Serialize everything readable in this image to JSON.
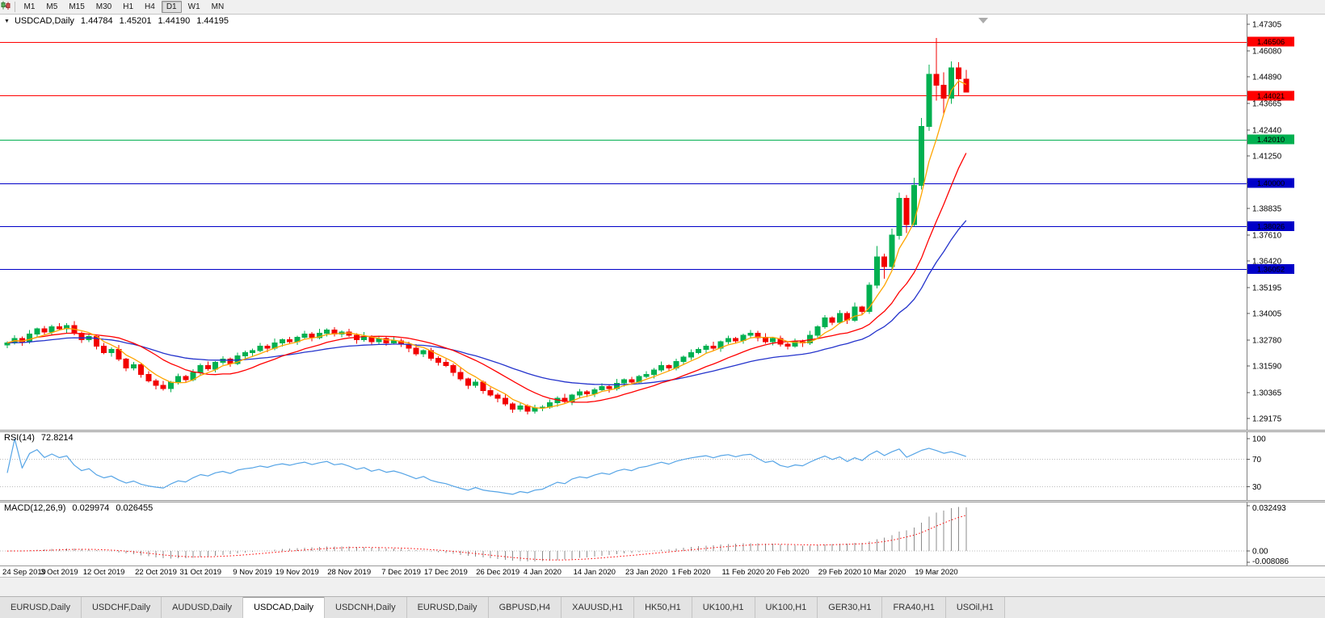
{
  "toolbar": {
    "chart_menu_icon": "candlestick-chart-icon",
    "timeframes": [
      "M1",
      "M5",
      "M15",
      "M30",
      "H1",
      "H4",
      "D1",
      "W1",
      "MN"
    ],
    "active_timeframe": "D1"
  },
  "chart": {
    "title": {
      "symbol": "USDCAD,Daily",
      "open": "1.44784",
      "high": "1.45201",
      "low": "1.44190",
      "close": "1.44195"
    },
    "price_axis": {
      "ticks": [
        "1.47305",
        "1.46080",
        "1.44890",
        "1.43665",
        "1.42440",
        "1.41250",
        "1.40025",
        "1.38835",
        "1.37610",
        "1.36420",
        "1.35195",
        "1.34005",
        "1.32780",
        "1.31590",
        "1.30365",
        "1.29175"
      ]
    },
    "colors": {
      "bull": "#00b050",
      "bear": "#f20000",
      "ma_fast": "#ffa500",
      "ma_mid": "#ff0000",
      "ma_slow": "#2433cc",
      "axis": "#808080"
    }
  },
  "chart_data": {
    "type": "candlestick",
    "symbol": "USDCAD",
    "period": "Daily",
    "y_range": [
      1.29175,
      1.47305
    ],
    "horizontal_lines": [
      {
        "price": 1.46506,
        "label": "1.46506",
        "color": "#ff0000"
      },
      {
        "price": 1.44021,
        "label": "1.44021",
        "color": "#ff0000"
      },
      {
        "price": 1.4201,
        "label": "1.42010",
        "color": "#00b050"
      },
      {
        "price": 1.4,
        "label": "1.40000",
        "color": "#0000c8"
      },
      {
        "price": 1.38026,
        "label": "1.38026",
        "color": "#0000c8"
      },
      {
        "price": 1.36052,
        "label": "1.36052",
        "color": "#0000c8"
      }
    ],
    "moving_averages": [
      {
        "name": "ma-slow",
        "type": "ema",
        "period": 30,
        "color": "#2433cc"
      },
      {
        "name": "ma-mid",
        "type": "sma",
        "period": 13,
        "color": "#ff0000"
      },
      {
        "name": "ma-fast",
        "type": "sma",
        "period": 5,
        "color": "#ffa500"
      }
    ],
    "date_labels": [
      {
        "i": 0,
        "label": "24 Sep 2019"
      },
      {
        "i": 7,
        "label": "3 Oct 2019"
      },
      {
        "i": 13,
        "label": "12 Oct 2019"
      },
      {
        "i": 20,
        "label": "22 Oct 2019"
      },
      {
        "i": 26,
        "label": "31 Oct 2019"
      },
      {
        "i": 33,
        "label": "9 Nov 2019"
      },
      {
        "i": 39,
        "label": "19 Nov 2019"
      },
      {
        "i": 46,
        "label": "28 Nov 2019"
      },
      {
        "i": 53,
        "label": "7 Dec 2019"
      },
      {
        "i": 59,
        "label": "17 Dec 2019"
      },
      {
        "i": 66,
        "label": "26 Dec 2019"
      },
      {
        "i": 72,
        "label": "4 Jan 2020"
      },
      {
        "i": 79,
        "label": "14 Jan 2020"
      },
      {
        "i": 86,
        "label": "23 Jan 2020"
      },
      {
        "i": 92,
        "label": "1 Feb 2020"
      },
      {
        "i": 99,
        "label": "11 Feb 2020"
      },
      {
        "i": 105,
        "label": "20 Feb 2020"
      },
      {
        "i": 112,
        "label": "29 Feb 2020"
      },
      {
        "i": 118,
        "label": "10 Mar 2020"
      },
      {
        "i": 125,
        "label": "19 Mar 2020"
      }
    ],
    "candles": [
      [
        1.3255,
        1.3273,
        1.3241,
        1.3265
      ],
      [
        1.3265,
        1.33,
        1.3258,
        1.3285
      ],
      [
        1.3285,
        1.3295,
        1.3252,
        1.327
      ],
      [
        1.327,
        1.3325,
        1.3261,
        1.3305
      ],
      [
        1.3305,
        1.3336,
        1.3289,
        1.333
      ],
      [
        1.333,
        1.3343,
        1.3304,
        1.3315
      ],
      [
        1.3315,
        1.3348,
        1.3301,
        1.334
      ],
      [
        1.334,
        1.3355,
        1.3323,
        1.333
      ],
      [
        1.333,
        1.3355,
        1.3312,
        1.3345
      ],
      [
        1.3345,
        1.3365,
        1.3301,
        1.331
      ],
      [
        1.331,
        1.3316,
        1.3264,
        1.328
      ],
      [
        1.328,
        1.3308,
        1.3269,
        1.3295
      ],
      [
        1.3295,
        1.3303,
        1.3236,
        1.325
      ],
      [
        1.325,
        1.3265,
        1.3213,
        1.322
      ],
      [
        1.322,
        1.3245,
        1.3202,
        1.3235
      ],
      [
        1.3235,
        1.3255,
        1.3181,
        1.319
      ],
      [
        1.319,
        1.3196,
        1.3134,
        1.315
      ],
      [
        1.315,
        1.3178,
        1.3139,
        1.3165
      ],
      [
        1.3165,
        1.3173,
        1.3106,
        1.312
      ],
      [
        1.312,
        1.3135,
        1.3083,
        1.309
      ],
      [
        1.309,
        1.31,
        1.3052,
        1.307
      ],
      [
        1.307,
        1.309,
        1.3046,
        1.3055
      ],
      [
        1.3055,
        1.3091,
        1.3039,
        1.3085
      ],
      [
        1.3085,
        1.3123,
        1.3074,
        1.311
      ],
      [
        1.311,
        1.3118,
        1.3081,
        1.3095
      ],
      [
        1.3095,
        1.3145,
        1.3088,
        1.313
      ],
      [
        1.313,
        1.317,
        1.3112,
        1.316
      ],
      [
        1.316,
        1.318,
        1.3136,
        1.3145
      ],
      [
        1.3145,
        1.3181,
        1.3129,
        1.3175
      ],
      [
        1.3175,
        1.3203,
        1.3164,
        1.319
      ],
      [
        1.319,
        1.3198,
        1.3156,
        1.317
      ],
      [
        1.317,
        1.322,
        1.3163,
        1.3205
      ],
      [
        1.3205,
        1.323,
        1.3187,
        1.322
      ],
      [
        1.322,
        1.3238,
        1.3206,
        1.323
      ],
      [
        1.323,
        1.3265,
        1.3223,
        1.325
      ],
      [
        1.325,
        1.326,
        1.3222,
        1.324
      ],
      [
        1.324,
        1.3285,
        1.3231,
        1.3265
      ],
      [
        1.3265,
        1.3286,
        1.3249,
        1.328
      ],
      [
        1.328,
        1.3293,
        1.3259,
        1.327
      ],
      [
        1.327,
        1.3298,
        1.3256,
        1.329
      ],
      [
        1.329,
        1.332,
        1.3283,
        1.3305
      ],
      [
        1.3305,
        1.3315,
        1.3272,
        1.329
      ],
      [
        1.329,
        1.333,
        1.3281,
        1.331
      ],
      [
        1.331,
        1.3331,
        1.3294,
        1.3325
      ],
      [
        1.3325,
        1.3338,
        1.3294,
        1.3305
      ],
      [
        1.3305,
        1.3323,
        1.3291,
        1.3315
      ],
      [
        1.3315,
        1.333,
        1.3293,
        1.33
      ],
      [
        1.33,
        1.331,
        1.3262,
        1.328
      ],
      [
        1.328,
        1.3315,
        1.3271,
        1.3295
      ],
      [
        1.3295,
        1.3301,
        1.3254,
        1.327
      ],
      [
        1.327,
        1.3298,
        1.3259,
        1.3285
      ],
      [
        1.3285,
        1.3293,
        1.3251,
        1.3265
      ],
      [
        1.3265,
        1.329,
        1.3258,
        1.3275
      ],
      [
        1.3275,
        1.3285,
        1.3246,
        1.326
      ],
      [
        1.326,
        1.327,
        1.3222,
        1.324
      ],
      [
        1.324,
        1.326,
        1.3206,
        1.3215
      ],
      [
        1.3215,
        1.3236,
        1.3199,
        1.323
      ],
      [
        1.323,
        1.3243,
        1.3184,
        1.3195
      ],
      [
        1.3195,
        1.3203,
        1.3161,
        1.3175
      ],
      [
        1.3175,
        1.319,
        1.3153,
        1.316
      ],
      [
        1.316,
        1.317,
        1.3112,
        1.313
      ],
      [
        1.313,
        1.315,
        1.3091,
        1.31
      ],
      [
        1.31,
        1.3106,
        1.3054,
        1.307
      ],
      [
        1.307,
        1.3098,
        1.3059,
        1.3085
      ],
      [
        1.3085,
        1.3093,
        1.3031,
        1.3045
      ],
      [
        1.3045,
        1.306,
        1.3018,
        1.3025
      ],
      [
        1.3025,
        1.3035,
        1.2992,
        1.301
      ],
      [
        1.301,
        1.303,
        1.2976,
        1.2985
      ],
      [
        1.2985,
        1.2991,
        1.2944,
        1.296
      ],
      [
        1.296,
        1.2988,
        1.2949,
        1.2975
      ],
      [
        1.2975,
        1.2983,
        1.2936,
        1.295
      ],
      [
        1.295,
        1.298,
        1.2939,
        1.2965
      ],
      [
        1.2965,
        1.2978,
        1.2951,
        1.297
      ],
      [
        1.297,
        1.3005,
        1.2963,
        1.299
      ],
      [
        1.299,
        1.302,
        1.2972,
        1.301
      ],
      [
        1.301,
        1.303,
        1.2986,
        1.2995
      ],
      [
        1.2995,
        1.3031,
        1.2979,
        1.3025
      ],
      [
        1.3025,
        1.3053,
        1.3014,
        1.304
      ],
      [
        1.304,
        1.3048,
        1.3016,
        1.303
      ],
      [
        1.303,
        1.3058,
        1.3016,
        1.305
      ],
      [
        1.305,
        1.308,
        1.3043,
        1.3065
      ],
      [
        1.3065,
        1.3075,
        1.3037,
        1.3055
      ],
      [
        1.3055,
        1.31,
        1.3046,
        1.308
      ],
      [
        1.308,
        1.3101,
        1.3064,
        1.3095
      ],
      [
        1.3095,
        1.3108,
        1.3074,
        1.3085
      ],
      [
        1.3085,
        1.3118,
        1.3076,
        1.311
      ],
      [
        1.311,
        1.3135,
        1.3103,
        1.312
      ],
      [
        1.312,
        1.315,
        1.3102,
        1.314
      ],
      [
        1.314,
        1.318,
        1.3131,
        1.316
      ],
      [
        1.316,
        1.3166,
        1.3134,
        1.315
      ],
      [
        1.315,
        1.3193,
        1.3139,
        1.318
      ],
      [
        1.318,
        1.3208,
        1.3166,
        1.32
      ],
      [
        1.32,
        1.3235,
        1.3186,
        1.322
      ],
      [
        1.322,
        1.3245,
        1.3213,
        1.3235
      ],
      [
        1.3235,
        1.326,
        1.3217,
        1.325
      ],
      [
        1.325,
        1.327,
        1.3231,
        1.324
      ],
      [
        1.324,
        1.3276,
        1.3224,
        1.327
      ],
      [
        1.327,
        1.3298,
        1.3259,
        1.3285
      ],
      [
        1.3285,
        1.3293,
        1.3261,
        1.3275
      ],
      [
        1.3275,
        1.3308,
        1.3261,
        1.33
      ],
      [
        1.33,
        1.3325,
        1.3286,
        1.331
      ],
      [
        1.331,
        1.332,
        1.3272,
        1.329
      ],
      [
        1.329,
        1.331,
        1.3261,
        1.327
      ],
      [
        1.327,
        1.3291,
        1.3254,
        1.3285
      ],
      [
        1.3285,
        1.3298,
        1.3249,
        1.326
      ],
      [
        1.326,
        1.3268,
        1.3236,
        1.325
      ],
      [
        1.325,
        1.3285,
        1.3243,
        1.327
      ],
      [
        1.327,
        1.328,
        1.3247,
        1.3265
      ],
      [
        1.3265,
        1.332,
        1.3256,
        1.33
      ],
      [
        1.33,
        1.3346,
        1.3284,
        1.334
      ],
      [
        1.334,
        1.3393,
        1.3329,
        1.338
      ],
      [
        1.338,
        1.3388,
        1.3346,
        1.336
      ],
      [
        1.336,
        1.3415,
        1.3353,
        1.34
      ],
      [
        1.34,
        1.341,
        1.3352,
        1.337
      ],
      [
        1.337,
        1.345,
        1.3361,
        1.343
      ],
      [
        1.343,
        1.3436,
        1.3394,
        1.341
      ],
      [
        1.341,
        1.3543,
        1.3399,
        1.353
      ],
      [
        1.353,
        1.371,
        1.3516,
        1.366
      ],
      [
        1.366,
        1.3675,
        1.356,
        1.3615
      ],
      [
        1.3615,
        1.379,
        1.3605,
        1.376
      ],
      [
        1.376,
        1.3955,
        1.374,
        1.393
      ],
      [
        1.393,
        1.3945,
        1.377,
        1.381
      ],
      [
        1.381,
        1.4025,
        1.38,
        1.399
      ],
      [
        1.399,
        1.43,
        1.397,
        1.426
      ],
      [
        1.426,
        1.4545,
        1.424,
        1.45
      ],
      [
        1.45,
        1.4668,
        1.438,
        1.445
      ],
      [
        1.445,
        1.451,
        1.432,
        1.439
      ],
      [
        1.439,
        1.456,
        1.4365,
        1.453
      ],
      [
        1.453,
        1.4555,
        1.44,
        1.448
      ],
      [
        1.44784,
        1.45201,
        1.4419,
        1.44195
      ]
    ]
  },
  "rsi": {
    "name": "RSI(14)",
    "value": "72.8214",
    "period": 14,
    "axis_labels": [
      "100",
      "70",
      "30"
    ],
    "levels": [
      70,
      30
    ],
    "color": "#55a4e6"
  },
  "macd": {
    "name": "MACD(12,26,9)",
    "value": "0.029974",
    "signal_value": "0.026455",
    "fast": 12,
    "slow": 26,
    "signal": 9,
    "axis_labels": [
      "0.032493",
      "0.00",
      "-0.008086"
    ],
    "range": [
      -0.008086,
      0.032493
    ],
    "hist_color": "#8c8c8c",
    "signal_color": "#ff0000"
  },
  "tabs": {
    "items": [
      "EURUSD,Daily",
      "USDCHF,Daily",
      "AUDUSD,Daily",
      "USDCAD,Daily",
      "USDCNH,Daily",
      "EURUSD,Daily",
      "GBPUSD,H4",
      "XAUUSD,H1",
      "HK50,H1",
      "UK100,H1",
      "UK100,H1",
      "GER30,H1",
      "FRA40,H1",
      "USOil,H1"
    ],
    "active_index": 3
  }
}
